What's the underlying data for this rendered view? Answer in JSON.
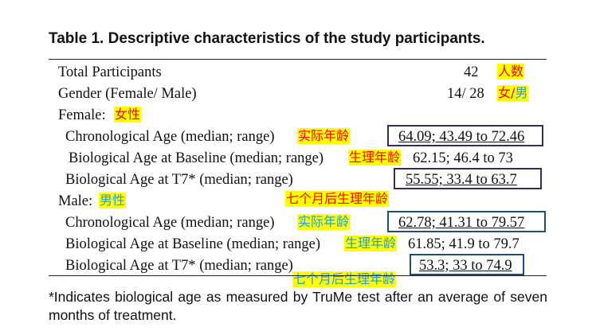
{
  "title": "Table 1. Descriptive characteristics of the study participants.",
  "rows": [
    {
      "label": "Total Participants",
      "value": "42",
      "ann": "人数",
      "ann_color": "red"
    },
    {
      "label": "Gender (Female/ Male)",
      "value": "14/ 28",
      "ann_a": "女/",
      "ann_b": "男"
    },
    {
      "label": "Female:",
      "ann": "女性",
      "ann_color": "red"
    },
    {
      "label": "Chronological Age (median; range)",
      "ann": "实际年龄",
      "value": "64.09; 43.49 to 72.46"
    },
    {
      "label": "Biological Age at Baseline (median; range)",
      "ann": "生理年龄",
      "value": "62.15; 46.4 to 73"
    },
    {
      "label": "Biological Age at T7* (median; range)",
      "value": "55.55; 33.4 to 63.7",
      "ann": "七个月后生理年龄"
    },
    {
      "label": "Male:",
      "ann": "男性",
      "ann_color": "blue"
    },
    {
      "label": "Chronological Age (median; range)",
      "ann": "实际年龄",
      "value": "62.78; 41.31 to 79.57"
    },
    {
      "label": "Biological Age at Baseline (median; range)",
      "ann": "生理年龄",
      "value": "61.85; 41.9 to 79.7"
    },
    {
      "label": "Biological Age at T7* (median; range)",
      "value": "53.3; 33 to 74.9",
      "ann": "七个月后生理年龄"
    }
  ],
  "footnote": "*Indicates biological age as measured by TruMe test after an average of seven months of treatment.",
  "colors": {
    "highlight": "#ffff00",
    "red_text": "#ff0000",
    "blue_text": "#1a9fd6",
    "female_box": "#3a2a5a",
    "male_box": "#1f4e79"
  }
}
